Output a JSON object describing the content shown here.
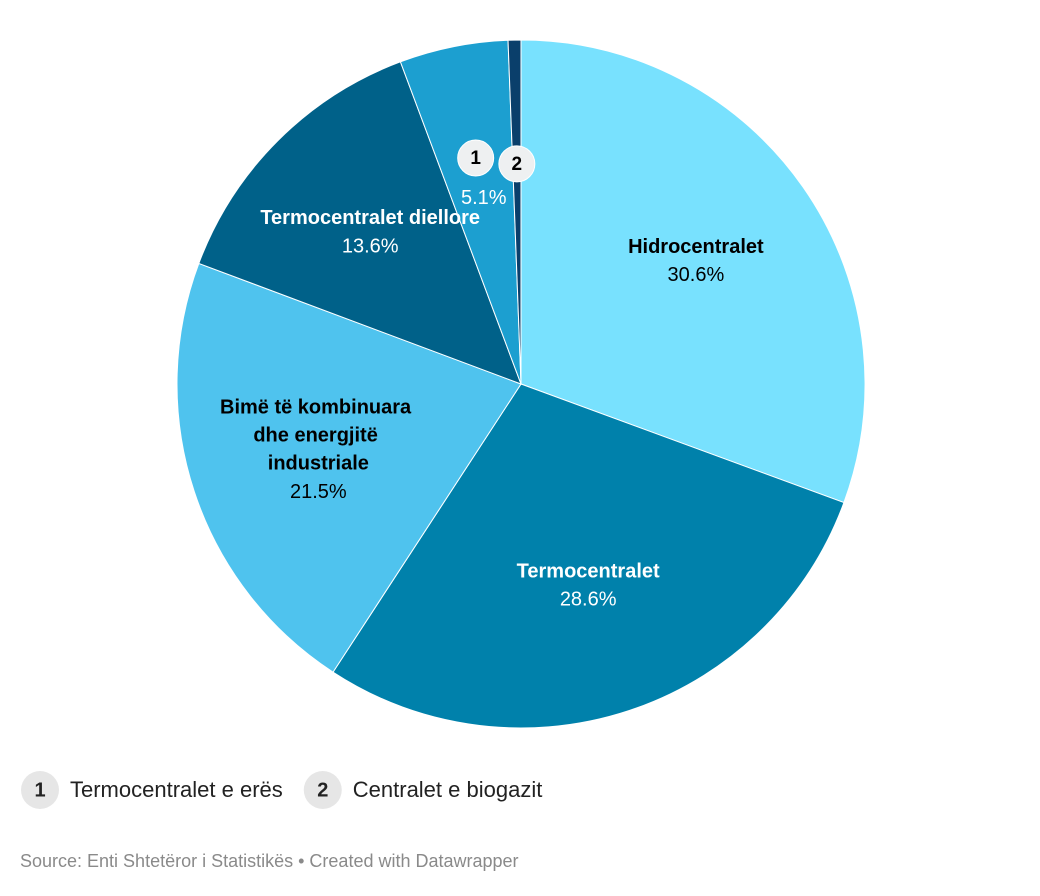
{
  "chart_data": {
    "type": "pie",
    "categories": [
      "Hidrocentralet",
      "Termocentralet",
      "Bimë të kombinuara dhe energjitë industriale",
      "Termocentralet diellore",
      "Termocentralet e erës",
      "Centralet e biogazit"
    ],
    "values": [
      30.6,
      28.6,
      21.5,
      13.6,
      5.1,
      0.6
    ],
    "value_labels": [
      "30.6%",
      "28.6%",
      "21.5%",
      "13.6%",
      "5.1%",
      null
    ],
    "colors": [
      "#78e1fe",
      "#0081ab",
      "#4fc3ee",
      "#006189",
      "#1c9fd0",
      "#0a3f6b"
    ],
    "markers": [
      null,
      null,
      null,
      null,
      "1",
      "2"
    ],
    "source": "Source: Enti Shtetëror i Statistikës • Created with Datawrapper"
  }
}
